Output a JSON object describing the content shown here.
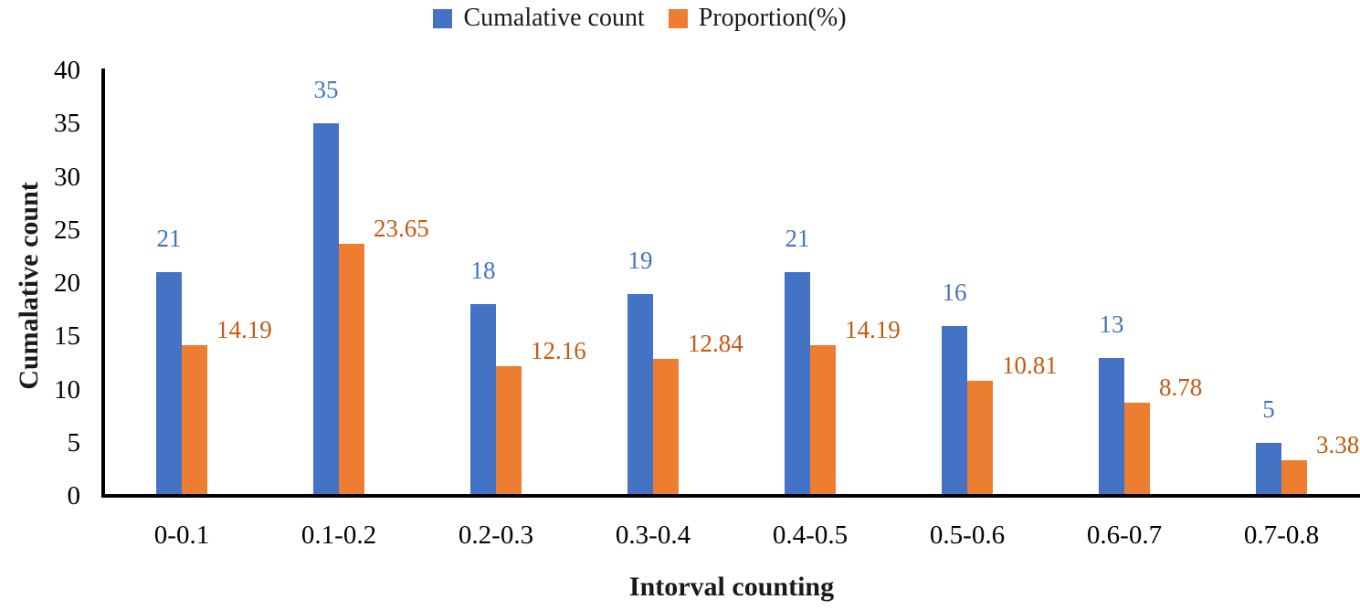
{
  "chart_data": {
    "type": "bar",
    "title": "",
    "xlabel": "Intorval counting",
    "ylabel": "Cumalative count",
    "categories": [
      "0-0.1",
      "0.1-0.2",
      "0.2-0.3",
      "0.3-0.4",
      "0.4-0.5",
      "0.5-0.6",
      "0.6-0.7",
      "0.7-0.8"
    ],
    "series": [
      {
        "name": "Cumalative count",
        "color": "#4472C4",
        "label_color": "#4472C4",
        "values": [
          21,
          35,
          18,
          19,
          21,
          16,
          13,
          5
        ],
        "labels": [
          "21",
          "35",
          "18",
          "19",
          "21",
          "16",
          "13",
          "5"
        ]
      },
      {
        "name": "Proportion(%)",
        "color": "#ED7D31",
        "label_color": "#C45A11",
        "values": [
          14.19,
          23.65,
          12.16,
          12.84,
          14.19,
          10.81,
          8.78,
          3.38
        ],
        "labels": [
          "14.19",
          "23.65",
          "12.16",
          "12.84",
          "14.19",
          "10.81",
          "8.78",
          "3.38"
        ]
      }
    ],
    "ylim": [
      0,
      40
    ],
    "y_ticks": [
      "0",
      "5",
      "10",
      "15",
      "20",
      "25",
      "30",
      "35",
      "40"
    ],
    "grid": "off",
    "legend_position": "top-center",
    "axis_color": "#000000"
  }
}
